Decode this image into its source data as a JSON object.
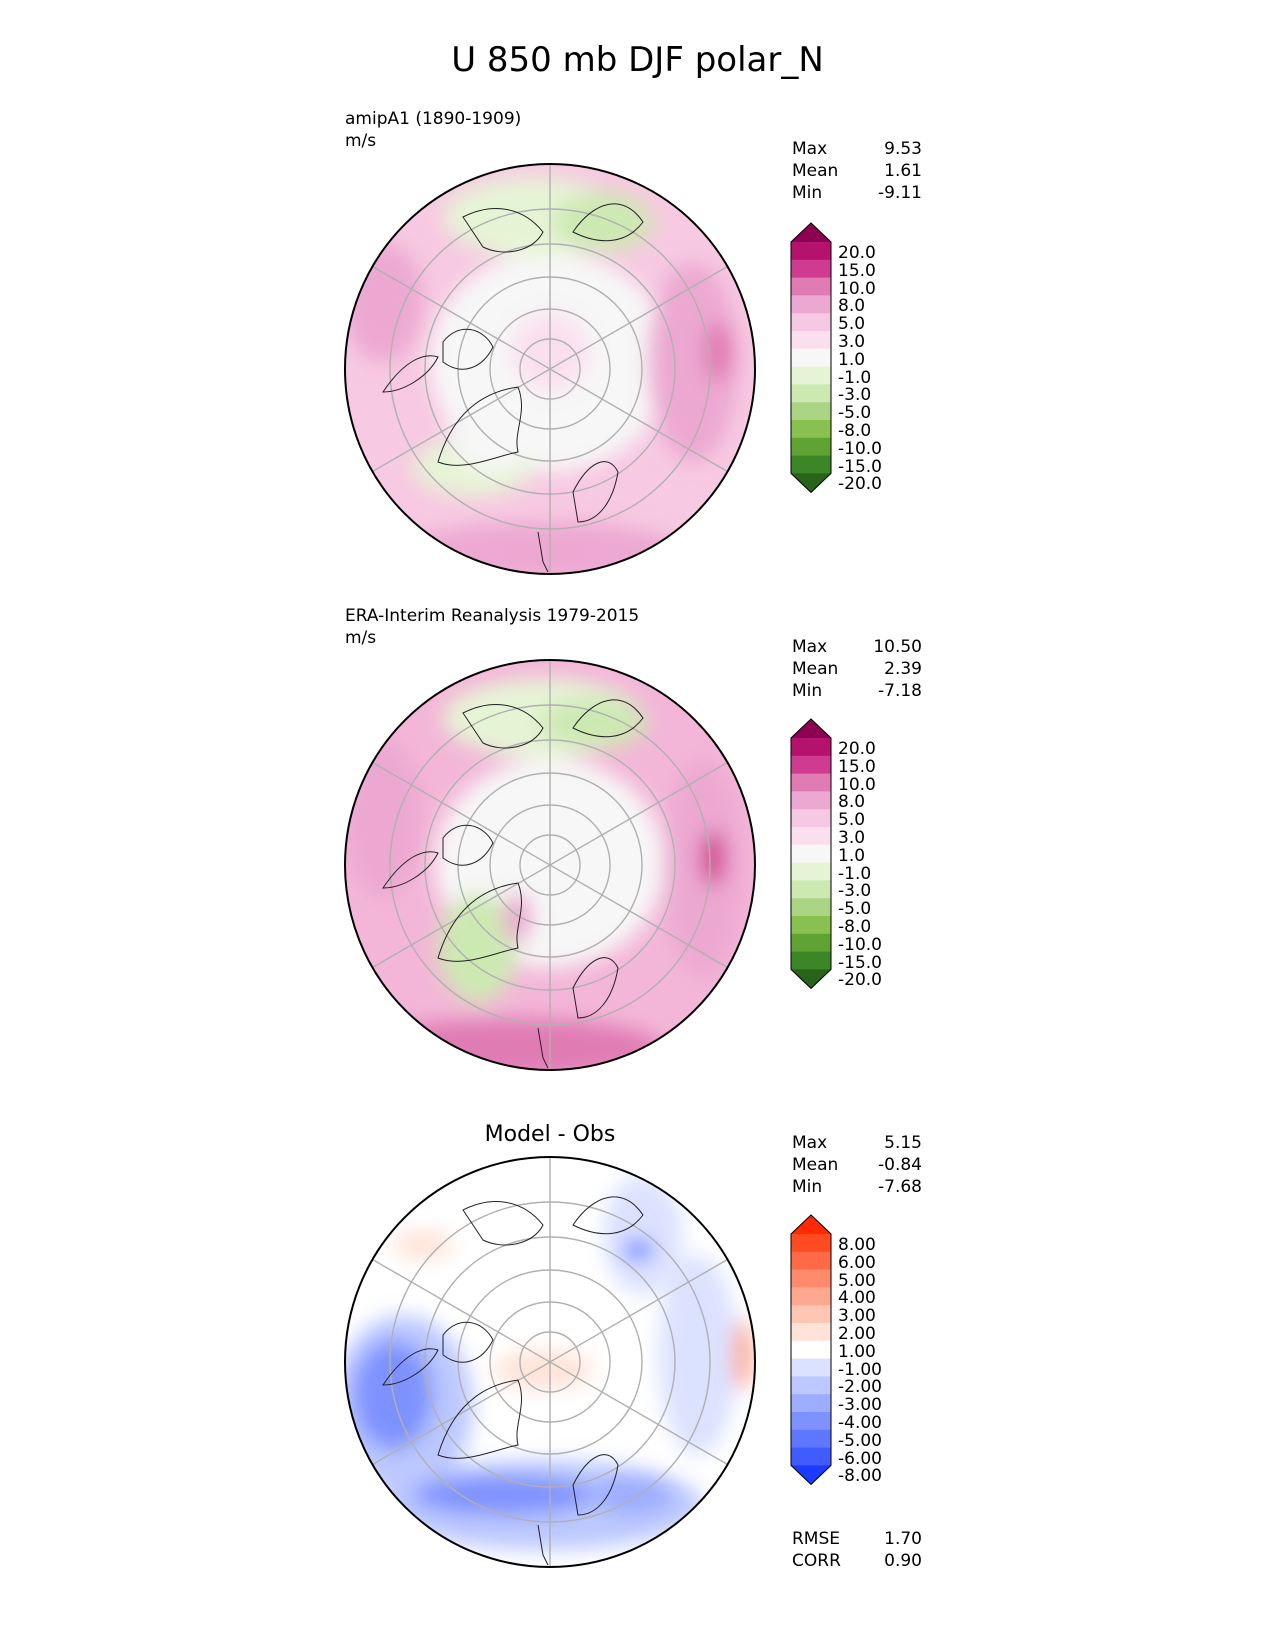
{
  "title": "U 850 mb DJF polar_N",
  "panels": [
    {
      "title": "amipA1 (1890-1909)",
      "units": "m/s",
      "stats": [
        {
          "label": "Max",
          "value": "9.53"
        },
        {
          "label": "Mean",
          "value": "1.61"
        },
        {
          "label": "Min",
          "value": "-9.11"
        }
      ]
    },
    {
      "title": "ERA-Interim Reanalysis 1979-2015",
      "units": "m/s",
      "stats": [
        {
          "label": "Max",
          "value": "10.50"
        },
        {
          "label": "Mean",
          "value": "2.39"
        },
        {
          "label": "Min",
          "value": "-7.18"
        }
      ]
    },
    {
      "title": "Model - Obs",
      "stats": [
        {
          "label": "Max",
          "value": "5.15"
        },
        {
          "label": "Mean",
          "value": "-0.84"
        },
        {
          "label": "Min",
          "value": "-7.68"
        }
      ],
      "metrics": [
        {
          "label": "RMSE",
          "value": "1.70"
        },
        {
          "label": "CORR",
          "value": "0.90"
        }
      ]
    }
  ],
  "colorbars": {
    "field": {
      "labels": [
        "20.0",
        "15.0",
        "10.0",
        "8.0",
        "5.0",
        "3.0",
        "1.0",
        "-1.0",
        "-3.0",
        "-5.0",
        "-8.0",
        "-10.0",
        "-15.0",
        "-20.0"
      ],
      "colors": [
        "#8e0152",
        "#b5126e",
        "#cf3c8f",
        "#e07bb4",
        "#eca8d1",
        "#f5c8e3",
        "#fae0ef",
        "#f7f7f7",
        "#e6f4d6",
        "#cde9b2",
        "#aad585",
        "#88c150",
        "#5fa332",
        "#3d8626",
        "#276419"
      ]
    },
    "diff": {
      "labels": [
        "8.00",
        "6.00",
        "5.00",
        "4.00",
        "3.00",
        "2.00",
        "1.00",
        "-1.00",
        "-2.00",
        "-3.00",
        "-4.00",
        "-5.00",
        "-6.00",
        "-8.00"
      ],
      "colors": [
        "#ff2a00",
        "#ff4a22",
        "#ff6a46",
        "#ff8a6c",
        "#ffa890",
        "#ffc6b4",
        "#ffe3d8",
        "#ffffff",
        "#dbe2ff",
        "#bcc8ff",
        "#9dadff",
        "#7e92ff",
        "#5f77ff",
        "#405cff",
        "#1b3cff"
      ]
    }
  }
}
